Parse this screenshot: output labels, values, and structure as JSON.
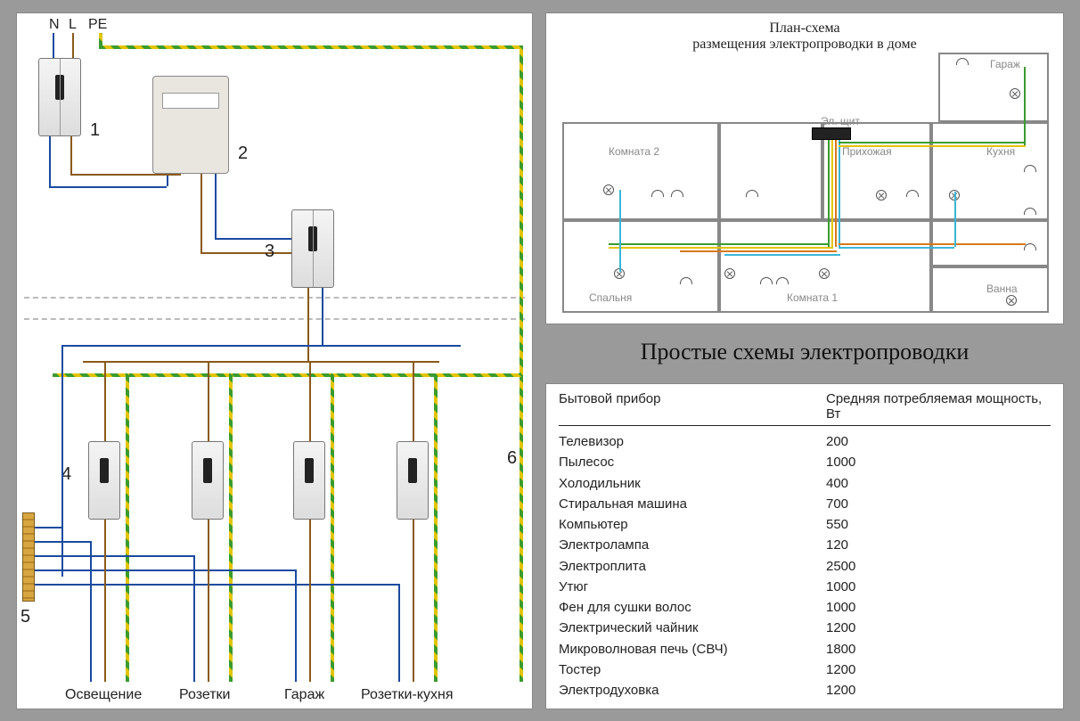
{
  "colors": {
    "bg": "#9a9a9a",
    "panel": "#ffffff",
    "wire_neutral": "#1a4b9f",
    "wire_line": "#8a5a1a",
    "wire_pe_a": "#3a9b2f",
    "wire_pe_b": "#e3c400",
    "room_border": "#888888",
    "room_text": "#888888",
    "text": "#222222"
  },
  "circuit": {
    "top_labels": {
      "n": "N",
      "l": "L",
      "pe": "PE"
    },
    "components": {
      "1": "1",
      "2": "2",
      "3": "3",
      "4": "4",
      "5": "5",
      "6": "6"
    },
    "bottom_labels": {
      "lighting": "Освещение",
      "sockets": "Розетки",
      "garage": "Гараж",
      "kitchen": "Розетки-кухня"
    }
  },
  "floorplan": {
    "title_line1": "План-схема",
    "title_line2": "размещения электропроводки в доме",
    "panel_label": "Эл. щит",
    "rooms": {
      "garage": "Гараж",
      "room2": "Комната 2",
      "hall": "Прихожая",
      "kitchen": "Кухня",
      "bedroom": "Спальня",
      "room1": "Комната 1",
      "bath": "Ванна"
    }
  },
  "main_title": "Простые схемы электропроводки",
  "table": {
    "header_device": "Бытовой прибор",
    "header_power": "Средняя потребляемая мощность, Вт",
    "rows": [
      {
        "device": "Телевизор",
        "power": "200"
      },
      {
        "device": "Пылесос",
        "power": "1000"
      },
      {
        "device": "Холодильник",
        "power": "400"
      },
      {
        "device": "Стиральная машина",
        "power": "700"
      },
      {
        "device": "Компьютер",
        "power": "550"
      },
      {
        "device": "Электролампа",
        "power": "120"
      },
      {
        "device": "Электроплита",
        "power": "2500"
      },
      {
        "device": "Утюг",
        "power": "1000"
      },
      {
        "device": "Фен для сушки волос",
        "power": "1000"
      },
      {
        "device": "Электрический чайник",
        "power": "1200"
      },
      {
        "device": "Микроволновая печь (СВЧ)",
        "power": "1800"
      },
      {
        "device": "Тостер",
        "power": "1200"
      },
      {
        "device": "Электродуховка",
        "power": "1200"
      }
    ]
  }
}
